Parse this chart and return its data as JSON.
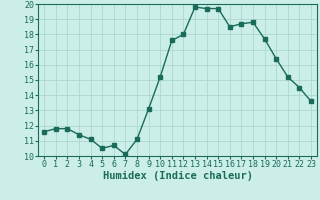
{
  "x": [
    0,
    1,
    2,
    3,
    4,
    5,
    6,
    7,
    8,
    9,
    10,
    11,
    12,
    13,
    14,
    15,
    16,
    17,
    18,
    19,
    20,
    21,
    22,
    23
  ],
  "y": [
    11.6,
    11.8,
    11.8,
    11.4,
    11.1,
    10.5,
    10.7,
    10.1,
    11.1,
    13.1,
    15.2,
    17.6,
    18.0,
    19.8,
    19.7,
    19.7,
    18.5,
    18.7,
    18.8,
    17.7,
    16.4,
    15.2,
    14.5,
    13.6
  ],
  "line_color": "#1a6b5a",
  "bg_color": "#cceee8",
  "grid_color": "#aad8d0",
  "xlabel": "Humidex (Indice chaleur)",
  "ylim": [
    10,
    20
  ],
  "xlim_min": -0.5,
  "xlim_max": 23.5,
  "yticks": [
    10,
    11,
    12,
    13,
    14,
    15,
    16,
    17,
    18,
    19,
    20
  ],
  "xticks": [
    0,
    1,
    2,
    3,
    4,
    5,
    6,
    7,
    8,
    9,
    10,
    11,
    12,
    13,
    14,
    15,
    16,
    17,
    18,
    19,
    20,
    21,
    22,
    23
  ],
  "xtick_labels": [
    "0",
    "1",
    "2",
    "3",
    "4",
    "5",
    "6",
    "7",
    "8",
    "9",
    "10",
    "11",
    "12",
    "13",
    "14",
    "15",
    "16",
    "17",
    "18",
    "19",
    "20",
    "21",
    "22",
    "23"
  ],
  "marker": "s",
  "marker_size": 2.5,
  "linewidth": 1.0,
  "tick_fontsize": 6,
  "xlabel_fontsize": 7.5,
  "xlabel_fontweight": "bold"
}
